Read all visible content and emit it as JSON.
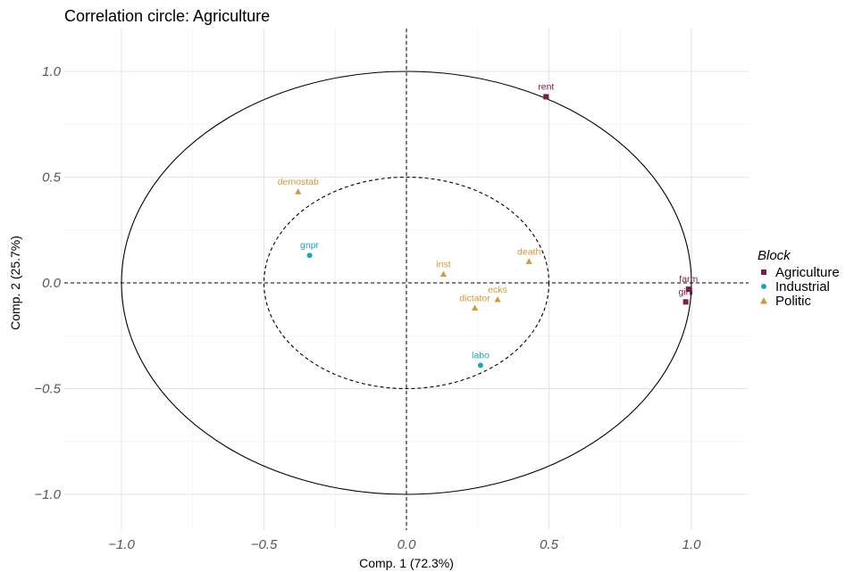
{
  "chart_data": {
    "type": "scatter",
    "title": "Correlation circle: Agriculture",
    "xlabel": "Comp. 1 (72.3%)",
    "ylabel": "Comp. 2 (25.7%)",
    "xlim": [
      -1.2,
      1.2
    ],
    "ylim": [
      -1.2,
      1.2
    ],
    "xticks": [
      -1.0,
      -0.5,
      0.0,
      0.5,
      1.0
    ],
    "xtick_labels": [
      "−1.0",
      "−0.5",
      "0.0",
      "0.5",
      "1.0"
    ],
    "yticks": [
      -1.0,
      -0.5,
      0.0,
      0.5,
      1.0
    ],
    "ytick_labels": [
      "−1.0",
      "−0.5",
      "0.0",
      "0.5",
      "1.0"
    ],
    "grid": true,
    "circles": [
      {
        "radius": 1.0,
        "style": "solid"
      },
      {
        "radius": 0.5,
        "style": "dashed"
      }
    ],
    "reference_lines": {
      "x0": "dashed",
      "y0": "dashed"
    },
    "legend": {
      "title": "Block",
      "position": "right",
      "entries": [
        {
          "name": "Agriculture",
          "color": "#7A1C4C",
          "shape": "square"
        },
        {
          "name": "Industrial",
          "color": "#1FA3B8",
          "shape": "circle"
        },
        {
          "name": "Politic",
          "color": "#D19A38",
          "shape": "triangle"
        }
      ]
    },
    "points": [
      {
        "label": "rent",
        "block": "Agriculture",
        "x": 0.49,
        "y": 0.88
      },
      {
        "label": "farm",
        "block": "Agriculture",
        "x": 0.99,
        "y": -0.03
      },
      {
        "label": "gini",
        "block": "Agriculture",
        "x": 0.98,
        "y": -0.09
      },
      {
        "label": "gnpr",
        "block": "Industrial",
        "x": -0.34,
        "y": 0.13
      },
      {
        "label": "labo",
        "block": "Industrial",
        "x": 0.26,
        "y": -0.39
      },
      {
        "label": "demostab",
        "block": "Politic",
        "x": -0.38,
        "y": 0.43
      },
      {
        "label": "inst",
        "block": "Politic",
        "x": 0.13,
        "y": 0.04
      },
      {
        "label": "death",
        "block": "Politic",
        "x": 0.43,
        "y": 0.1
      },
      {
        "label": "ecks",
        "block": "Politic",
        "x": 0.32,
        "y": -0.08
      },
      {
        "label": "dictator",
        "block": "Politic",
        "x": 0.24,
        "y": -0.12
      }
    ]
  }
}
